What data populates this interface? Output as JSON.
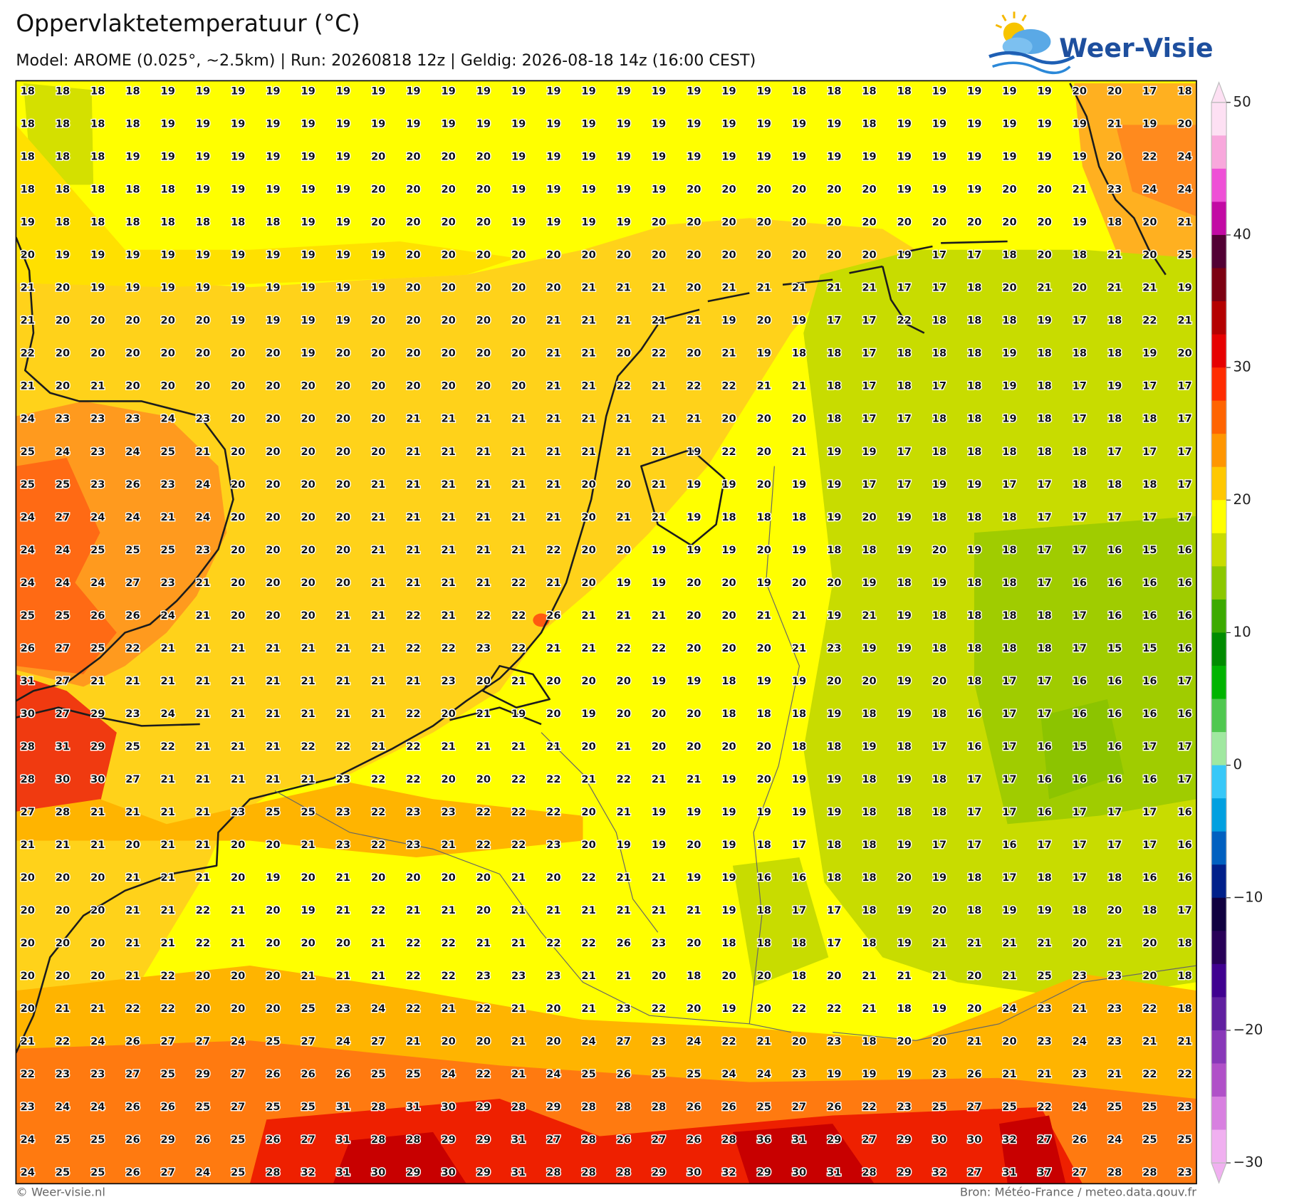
{
  "header": {
    "title": "Oppervlaktetemperatuur (°C)",
    "subtitle": "Model: AROME (0.025°, ~2.5km)  |  Run: 20260818 12z  |  Geldig: 2026-08-18 14z (16:00 CEST)",
    "logo": "Weer-Visie"
  },
  "grid": {
    "rows": [
      [
        18,
        18,
        18,
        18,
        19,
        19,
        19,
        19,
        19,
        19,
        19,
        19,
        19,
        19,
        19,
        19,
        19,
        19,
        19,
        19,
        19,
        19,
        18,
        18,
        18,
        18,
        19,
        19,
        19,
        19,
        20,
        20,
        17,
        18
      ],
      [
        18,
        18,
        18,
        18,
        19,
        19,
        19,
        19,
        19,
        19,
        19,
        19,
        19,
        19,
        19,
        19,
        19,
        19,
        19,
        19,
        19,
        19,
        19,
        19,
        18,
        19,
        19,
        19,
        19,
        19,
        19,
        21,
        19,
        20
      ],
      [
        18,
        18,
        18,
        19,
        19,
        19,
        19,
        19,
        19,
        19,
        20,
        20,
        20,
        20,
        19,
        19,
        19,
        19,
        19,
        19,
        19,
        19,
        19,
        19,
        19,
        19,
        19,
        19,
        19,
        19,
        19,
        20,
        22,
        24
      ],
      [
        18,
        18,
        18,
        18,
        18,
        19,
        19,
        19,
        19,
        19,
        20,
        20,
        20,
        20,
        19,
        19,
        19,
        19,
        19,
        20,
        20,
        20,
        20,
        20,
        20,
        19,
        19,
        19,
        20,
        20,
        21,
        23,
        24,
        24
      ],
      [
        19,
        18,
        18,
        18,
        18,
        18,
        18,
        18,
        19,
        19,
        20,
        20,
        20,
        20,
        19,
        19,
        19,
        19,
        20,
        20,
        20,
        20,
        20,
        20,
        20,
        20,
        20,
        20,
        20,
        20,
        19,
        18,
        20,
        21
      ],
      [
        20,
        19,
        19,
        19,
        19,
        19,
        19,
        19,
        19,
        19,
        19,
        20,
        20,
        20,
        20,
        20,
        20,
        20,
        20,
        20,
        20,
        20,
        20,
        20,
        20,
        19,
        17,
        17,
        18,
        20,
        18,
        21,
        20,
        25
      ],
      [
        21,
        20,
        19,
        19,
        19,
        19,
        19,
        19,
        19,
        19,
        19,
        20,
        20,
        20,
        20,
        20,
        21,
        21,
        21,
        20,
        21,
        21,
        21,
        21,
        21,
        17,
        17,
        18,
        20,
        21,
        20,
        21,
        21,
        19
      ],
      [
        21,
        20,
        20,
        20,
        20,
        20,
        19,
        19,
        19,
        19,
        20,
        20,
        20,
        20,
        20,
        21,
        21,
        21,
        21,
        21,
        19,
        20,
        19,
        17,
        17,
        22,
        18,
        18,
        18,
        19,
        17,
        18,
        22,
        21
      ],
      [
        22,
        20,
        20,
        20,
        20,
        20,
        20,
        20,
        19,
        20,
        20,
        20,
        20,
        20,
        20,
        21,
        21,
        20,
        22,
        20,
        21,
        19,
        18,
        18,
        17,
        18,
        18,
        18,
        19,
        18,
        18,
        18,
        19,
        20
      ],
      [
        21,
        20,
        21,
        20,
        20,
        20,
        20,
        20,
        20,
        20,
        20,
        20,
        20,
        20,
        20,
        21,
        21,
        22,
        21,
        22,
        22,
        21,
        21,
        18,
        17,
        18,
        17,
        18,
        19,
        18,
        17,
        19,
        17,
        17
      ],
      [
        24,
        23,
        23,
        23,
        24,
        23,
        20,
        20,
        20,
        20,
        20,
        21,
        21,
        21,
        21,
        21,
        21,
        21,
        21,
        21,
        20,
        20,
        20,
        18,
        17,
        17,
        18,
        18,
        19,
        18,
        17,
        18,
        18,
        17
      ],
      [
        25,
        24,
        23,
        24,
        25,
        21,
        20,
        20,
        20,
        20,
        20,
        21,
        21,
        21,
        21,
        21,
        21,
        21,
        21,
        19,
        22,
        20,
        21,
        19,
        19,
        17,
        18,
        18,
        18,
        18,
        18,
        17,
        17,
        17
      ],
      [
        25,
        25,
        23,
        26,
        23,
        24,
        20,
        20,
        20,
        20,
        21,
        21,
        21,
        21,
        21,
        21,
        20,
        20,
        21,
        19,
        19,
        20,
        19,
        19,
        17,
        17,
        19,
        19,
        17,
        17,
        18,
        18,
        18,
        17
      ],
      [
        24,
        27,
        24,
        24,
        21,
        24,
        20,
        20,
        20,
        20,
        21,
        21,
        21,
        21,
        21,
        21,
        20,
        21,
        21,
        19,
        18,
        18,
        18,
        19,
        20,
        19,
        18,
        18,
        18,
        17,
        17,
        17,
        17,
        17
      ],
      [
        24,
        24,
        25,
        25,
        25,
        23,
        20,
        20,
        20,
        20,
        21,
        21,
        21,
        21,
        21,
        22,
        20,
        20,
        19,
        19,
        19,
        20,
        19,
        18,
        18,
        19,
        20,
        19,
        18,
        17,
        17,
        16,
        15,
        16
      ],
      [
        24,
        24,
        24,
        27,
        23,
        21,
        20,
        20,
        20,
        20,
        21,
        21,
        21,
        21,
        22,
        21,
        20,
        19,
        19,
        20,
        20,
        19,
        20,
        20,
        19,
        18,
        19,
        18,
        18,
        17,
        16,
        16,
        16,
        16
      ],
      [
        25,
        25,
        26,
        26,
        24,
        21,
        20,
        20,
        20,
        21,
        21,
        22,
        21,
        22,
        22,
        26,
        21,
        21,
        21,
        20,
        20,
        21,
        21,
        19,
        21,
        19,
        18,
        18,
        18,
        18,
        17,
        16,
        16,
        16
      ],
      [
        26,
        27,
        25,
        22,
        21,
        21,
        21,
        21,
        21,
        21,
        21,
        22,
        22,
        23,
        22,
        21,
        21,
        22,
        22,
        20,
        20,
        20,
        21,
        23,
        19,
        19,
        18,
        18,
        18,
        18,
        17,
        15,
        15,
        16
      ],
      [
        31,
        27,
        21,
        21,
        21,
        21,
        21,
        21,
        21,
        21,
        21,
        21,
        23,
        20,
        21,
        20,
        20,
        20,
        19,
        19,
        18,
        19,
        19,
        20,
        20,
        19,
        20,
        18,
        17,
        17,
        16,
        16,
        16,
        17
      ],
      [
        30,
        27,
        29,
        23,
        24,
        21,
        21,
        21,
        21,
        21,
        21,
        22,
        20,
        21,
        19,
        20,
        19,
        20,
        20,
        20,
        18,
        18,
        18,
        19,
        18,
        19,
        18,
        16,
        17,
        17,
        16,
        16,
        16,
        16
      ],
      [
        28,
        31,
        29,
        25,
        22,
        21,
        21,
        21,
        22,
        22,
        21,
        22,
        21,
        21,
        21,
        21,
        20,
        21,
        20,
        20,
        20,
        20,
        18,
        18,
        19,
        18,
        17,
        16,
        17,
        16,
        15,
        16,
        17,
        17
      ],
      [
        28,
        30,
        30,
        27,
        21,
        21,
        21,
        21,
        21,
        23,
        22,
        22,
        20,
        20,
        22,
        22,
        21,
        22,
        21,
        21,
        19,
        20,
        19,
        19,
        18,
        19,
        18,
        17,
        17,
        16,
        16,
        16,
        16,
        17
      ],
      [
        27,
        28,
        21,
        21,
        21,
        21,
        23,
        25,
        25,
        23,
        22,
        23,
        23,
        22,
        22,
        22,
        20,
        21,
        19,
        19,
        19,
        19,
        19,
        19,
        18,
        18,
        18,
        17,
        17,
        16,
        17,
        17,
        17,
        16
      ],
      [
        21,
        21,
        21,
        20,
        21,
        21,
        20,
        20,
        21,
        23,
        22,
        23,
        21,
        22,
        22,
        23,
        20,
        19,
        19,
        20,
        19,
        18,
        17,
        18,
        18,
        19,
        17,
        17,
        16,
        17,
        17,
        17,
        17,
        16
      ],
      [
        20,
        20,
        20,
        21,
        21,
        21,
        20,
        19,
        20,
        21,
        20,
        20,
        20,
        20,
        21,
        20,
        22,
        21,
        21,
        19,
        19,
        16,
        16,
        18,
        18,
        20,
        19,
        18,
        17,
        18,
        17,
        18,
        16,
        16
      ],
      [
        20,
        20,
        20,
        21,
        21,
        22,
        21,
        20,
        19,
        21,
        22,
        21,
        21,
        20,
        21,
        21,
        21,
        21,
        21,
        21,
        19,
        18,
        17,
        17,
        18,
        19,
        20,
        18,
        19,
        19,
        18,
        20,
        18,
        17
      ],
      [
        20,
        20,
        20,
        21,
        21,
        22,
        21,
        20,
        20,
        20,
        21,
        22,
        22,
        21,
        21,
        22,
        22,
        26,
        23,
        20,
        18,
        18,
        18,
        17,
        18,
        19,
        21,
        21,
        21,
        21,
        20,
        21,
        20,
        18
      ],
      [
        20,
        20,
        20,
        21,
        22,
        20,
        20,
        20,
        21,
        21,
        21,
        22,
        22,
        23,
        23,
        23,
        21,
        21,
        20,
        18,
        20,
        20,
        18,
        20,
        21,
        21,
        21,
        20,
        21,
        25,
        23,
        23,
        20,
        18
      ],
      [
        20,
        21,
        21,
        22,
        22,
        20,
        20,
        20,
        25,
        23,
        24,
        22,
        21,
        22,
        21,
        20,
        21,
        23,
        22,
        20,
        19,
        20,
        22,
        22,
        21,
        18,
        19,
        20,
        24,
        23,
        21,
        23,
        22,
        18
      ],
      [
        21,
        22,
        24,
        26,
        27,
        27,
        24,
        25,
        27,
        24,
        27,
        21,
        20,
        20,
        21,
        20,
        24,
        27,
        23,
        24,
        22,
        21,
        20,
        23,
        18,
        20,
        20,
        21,
        20,
        23,
        24,
        23,
        21,
        21
      ],
      [
        22,
        23,
        23,
        27,
        25,
        29,
        27,
        26,
        26,
        26,
        25,
        25,
        24,
        22,
        21,
        24,
        25,
        26,
        25,
        25,
        24,
        24,
        23,
        19,
        19,
        19,
        23,
        26,
        21,
        21,
        23,
        21,
        22,
        22
      ],
      [
        23,
        24,
        24,
        26,
        26,
        25,
        27,
        25,
        25,
        31,
        28,
        31,
        30,
        29,
        28,
        29,
        28,
        28,
        28,
        26,
        26,
        25,
        27,
        26,
        22,
        23,
        25,
        27,
        25,
        22,
        24,
        25,
        25,
        23
      ],
      [
        24,
        25,
        25,
        26,
        29,
        26,
        25,
        26,
        27,
        31,
        28,
        28,
        29,
        29,
        31,
        27,
        28,
        26,
        27,
        26,
        28,
        36,
        31,
        29,
        27,
        29,
        30,
        30,
        32,
        27,
        26,
        24,
        25,
        25
      ],
      [
        24,
        25,
        25,
        26,
        27,
        24,
        25,
        28,
        32,
        31,
        30,
        29,
        30,
        29,
        31,
        28,
        28,
        28,
        29,
        30,
        32,
        29,
        30,
        31,
        28,
        29,
        32,
        27,
        31,
        37,
        27,
        28,
        28,
        23
      ]
    ]
  },
  "colorbar": {
    "ticks": [
      50,
      40,
      30,
      20,
      10,
      0,
      {
        "value": -10,
        "label": "−10"
      },
      {
        "value": -20,
        "label": "−20"
      },
      {
        "value": -30,
        "label": "−30"
      }
    ],
    "colors": [
      "#fde0f3",
      "#f8a8dc",
      "#ee50d6",
      "#c20aa4",
      "#520034",
      "#7c0012",
      "#b40000",
      "#e60000",
      "#ff2c00",
      "#ff6400",
      "#ff9600",
      "#ffc800",
      "#ffff00",
      "#c8dc00",
      "#8cc800",
      "#3caa00",
      "#008c00",
      "#00b400",
      "#50c850",
      "#a0e8a0",
      "#38c8f8",
      "#00a0e0",
      "#0060c0",
      "#00208a",
      "#100040",
      "#280058",
      "#400090",
      "#6020a0",
      "#8838b8",
      "#b050c8",
      "#d880e0",
      "#f0b0f0"
    ]
  },
  "footer": {
    "left": "© Weer-visie.nl",
    "right": "Bron: Météo-France / meteo.data.gouv.fr"
  }
}
